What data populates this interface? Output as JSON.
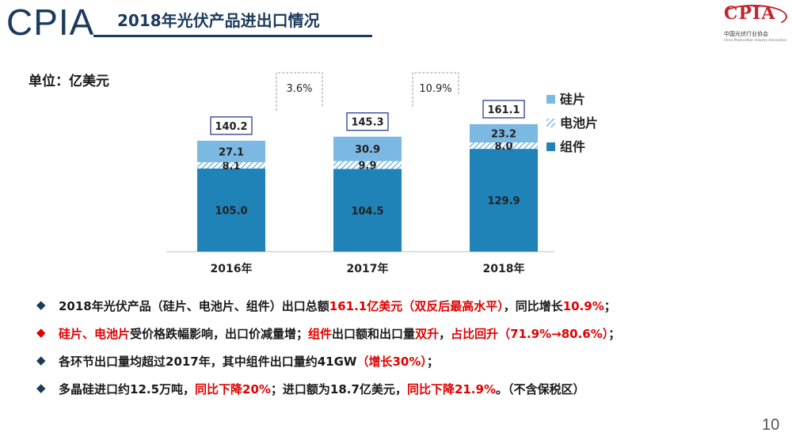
{
  "header": {
    "brand": "CPIA",
    "title": "2018年光伏产品进出口情况",
    "org_logo_letters": "CPIA",
    "org_logo_text": "中国光伏行业协会",
    "org_logo_subtext": "China Photovoltaic Industry Association"
  },
  "unit_label": "单位：亿美元",
  "chart_data": {
    "type": "bar",
    "stacked": true,
    "categories": [
      "2016年",
      "2017年",
      "2018年"
    ],
    "series": [
      {
        "name": "组件",
        "values": [
          105.0,
          104.5,
          129.9
        ],
        "color": "#1f83b8"
      },
      {
        "name": "电池片",
        "values": [
          8.1,
          9.9,
          8.0
        ],
        "color": "#bfe3f5",
        "pattern": "hatch"
      },
      {
        "name": "硅片",
        "values": [
          27.1,
          30.9,
          23.2
        ],
        "color": "#7bb8e2"
      }
    ],
    "totals": [
      140.2,
      145.3,
      161.1
    ],
    "growth_labels": [
      "3.6%",
      "10.9%"
    ],
    "legend_position": "right",
    "grid": false
  },
  "bullets": [
    {
      "parts": [
        [
          "2018年光伏产品（硅片、电池片、组件）出口总额",
          "dark"
        ],
        [
          "161.1亿美元（双反后最高水平）",
          "red"
        ],
        [
          "，同比增长",
          "dark"
        ],
        [
          "10.9%",
          "red"
        ],
        [
          "；",
          "dark"
        ]
      ],
      "marker_color": "dark"
    },
    {
      "parts": [
        [
          "硅片、电池片",
          "red"
        ],
        [
          "受价格跌幅影响，出口价减量增；",
          "dark"
        ],
        [
          "组件",
          "red"
        ],
        [
          "出口额和出口量",
          "dark"
        ],
        [
          "双升",
          "red"
        ],
        [
          "，",
          "dark"
        ],
        [
          "占比回升",
          "red"
        ],
        [
          "（71.9%→80.6%）",
          "red"
        ],
        [
          "；",
          "dark"
        ]
      ],
      "marker_color": "red"
    },
    {
      "parts": [
        [
          "各环节出口量均超过2017年，其中组件出口量约41GW",
          "dark"
        ],
        [
          "（增长30%）",
          "red"
        ],
        [
          "；",
          "dark"
        ]
      ],
      "marker_color": "dark"
    },
    {
      "parts": [
        [
          "多晶硅进口约12.5万吨，",
          "dark"
        ],
        [
          "同比下降20%",
          "red"
        ],
        [
          "；进口额为18.7亿美元，",
          "dark"
        ],
        [
          "同比下降21.9%",
          "red"
        ],
        [
          "。（不含保税区）",
          "dark"
        ]
      ],
      "marker_color": "dark"
    }
  ],
  "bullet_text": [
    [
      "2018年光伏产品（硅片、电池片、组件）出口总额",
      "161.1亿美元（双反后最高水平）",
      "，同比增长",
      "10.9%",
      "；"
    ],
    [
      "硅片、电池片",
      "受价格跌幅影响，出口价减量增；",
      "组件",
      "出口额和出口量",
      "双升",
      "，",
      "占比回升",
      "（71.9%→80.6%）",
      "；"
    ],
    [
      "各环节出口量均超过2017年，其中组件出口量约41GW",
      "（增长30%）",
      "；"
    ],
    [
      "多晶硅进口约12.5万吨，",
      "同比下降20%",
      "；进口额为18.7亿美元，",
      "同比下降21.9%",
      "。（不含保税区）"
    ]
  ],
  "page_number": "10"
}
